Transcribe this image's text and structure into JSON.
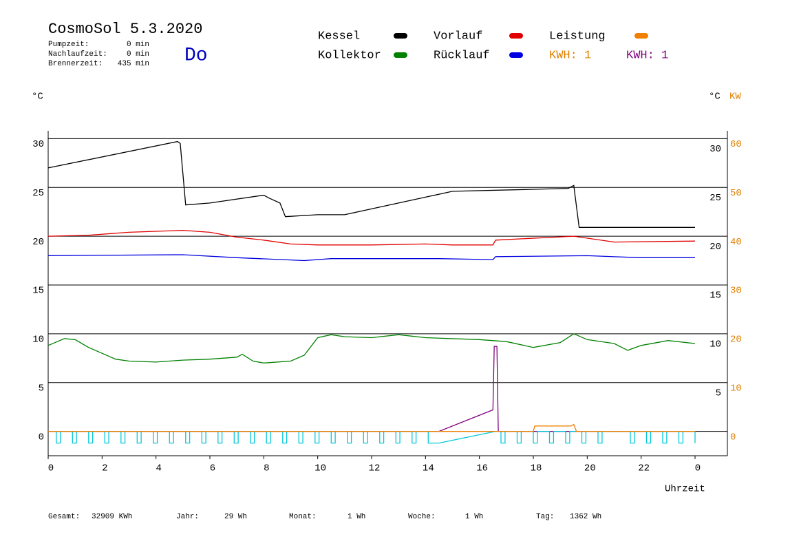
{
  "header": {
    "title": "CosmoSol 5.3.2020",
    "day": "Do",
    "info": [
      {
        "label": "Pumpzeit:",
        "value": "0 min"
      },
      {
        "label": "Nachlaufzeit:",
        "value": "0 min"
      },
      {
        "label": "Brennerzeit:",
        "value": "435 min"
      }
    ]
  },
  "footer": [
    {
      "label": "Gesamt:",
      "value": "32909 KWh"
    },
    {
      "label": "Jahr:",
      "value": "29 Wh"
    },
    {
      "label": "Monat:",
      "value": "1 Wh"
    },
    {
      "label": "Woche:",
      "value": "1 Wh"
    },
    {
      "label": "Tag:",
      "value": "1362 Wh"
    }
  ],
  "chart_data": {
    "type": "line",
    "xlabel": "Uhrzeit",
    "ylabel": "°C",
    "y2label_black": "°C",
    "y2label": "KW",
    "kwh_labels": [
      {
        "text": "KWH: 1",
        "color": "#e08000"
      },
      {
        "text": "KWH: 1",
        "color": "#800080"
      }
    ],
    "xlim": [
      0,
      25.2
    ],
    "xticks": [
      0,
      2,
      4,
      6,
      8,
      10,
      12,
      14,
      16,
      18,
      20,
      22,
      {
        "value": 24,
        "label": "0"
      }
    ],
    "ylim": [
      -2.5,
      30.8
    ],
    "yticks": [
      0,
      5,
      10,
      15,
      20,
      25,
      30
    ],
    "yticks_right": [
      5,
      10,
      15,
      20,
      25,
      30
    ],
    "y2lim": [
      -5,
      61.6
    ],
    "y2ticks": [
      0,
      10,
      20,
      30,
      40,
      50,
      60
    ],
    "grid": true,
    "series": [
      {
        "name": "Kessel",
        "color": "#000000",
        "x": [
          0,
          4.8,
          4.9,
          5.1,
          6,
          8,
          8.2,
          8.6,
          8.8,
          10,
          11,
          12,
          14,
          15,
          18,
          19.3,
          19.5,
          19.7,
          24
        ],
        "values": [
          27.0,
          29.7,
          29.5,
          23.2,
          23.4,
          24.2,
          23.9,
          23.4,
          22.0,
          22.2,
          22.2,
          22.8,
          24.0,
          24.6,
          24.8,
          24.9,
          25.2,
          20.9,
          20.9
        ]
      },
      {
        "name": "Kollektor",
        "color": "#008000",
        "x": [
          0,
          0.6,
          1,
          1.5,
          2,
          2.5,
          3,
          4,
          5,
          6,
          7,
          7.2,
          7.6,
          8,
          9,
          9.5,
          10,
          10.5,
          11,
          12,
          13,
          14,
          16,
          17,
          18,
          19,
          19.5,
          20,
          21,
          21.5,
          22,
          23,
          24
        ],
        "values": [
          8.8,
          9.5,
          9.4,
          8.6,
          8.0,
          7.4,
          7.2,
          7.1,
          7.3,
          7.4,
          7.6,
          7.9,
          7.2,
          7.0,
          7.2,
          7.8,
          9.6,
          9.9,
          9.7,
          9.6,
          9.9,
          9.6,
          9.4,
          9.2,
          8.6,
          9.1,
          10.0,
          9.4,
          9.0,
          8.3,
          8.8,
          9.3,
          9.0
        ]
      },
      {
        "name": "Vorlauf",
        "color": "#e00000",
        "x": [
          0,
          1.5,
          3,
          5,
          6,
          7,
          8,
          9,
          10,
          12,
          14,
          15,
          16.5,
          16.6,
          19.5,
          21,
          24
        ],
        "values": [
          20.0,
          20.1,
          20.4,
          20.6,
          20.4,
          19.9,
          19.6,
          19.2,
          19.1,
          19.1,
          19.2,
          19.1,
          19.1,
          19.6,
          20.0,
          19.4,
          19.5
        ]
      },
      {
        "name": "Rücklauf",
        "color": "#0000e0",
        "x": [
          0,
          5,
          7,
          9.5,
          10.5,
          14.5,
          16.5,
          16.6,
          20,
          22,
          24
        ],
        "values": [
          18.0,
          18.1,
          17.8,
          17.5,
          17.7,
          17.7,
          17.6,
          17.9,
          18.0,
          17.8,
          17.8
        ]
      },
      {
        "name": "Leistung",
        "color": "#f08000",
        "axis": "y2",
        "x": [
          0,
          16.6,
          18.0,
          18.05,
          19.4,
          19.5,
          19.6,
          24
        ],
        "values": [
          0,
          0,
          0,
          1.1,
          1.1,
          1.4,
          0,
          0
        ]
      },
      {
        "color": "#00c8d8",
        "x": [
          0,
          0.3,
          0.3,
          0.45,
          0.45,
          0.9,
          0.9,
          1.05,
          1.05,
          1.5,
          1.5,
          1.65,
          1.65,
          2.1,
          2.1,
          2.25,
          2.25,
          2.7,
          2.7,
          2.85,
          2.85,
          3.3,
          3.3,
          3.45,
          3.45,
          3.9,
          3.9,
          4.05,
          4.05,
          4.5,
          4.5,
          4.65,
          4.65,
          5.1,
          5.1,
          5.25,
          5.25,
          5.7,
          5.7,
          5.85,
          5.85,
          6.3,
          6.3,
          6.45,
          6.45,
          6.9,
          6.9,
          7.05,
          7.05,
          7.5,
          7.5,
          7.65,
          7.65,
          8.1,
          8.1,
          8.25,
          8.25,
          8.7,
          8.7,
          8.85,
          8.85,
          9.3,
          9.3,
          9.45,
          9.45,
          9.9,
          9.9,
          10.05,
          10.05,
          10.5,
          10.5,
          10.65,
          10.65,
          11.1,
          11.1,
          11.25,
          11.25,
          11.7,
          11.7,
          11.85,
          11.85,
          12.3,
          12.3,
          12.45,
          12.45,
          12.9,
          12.9,
          13.05,
          13.05,
          13.5,
          13.5,
          13.65,
          13.65,
          14.1,
          14.1,
          14.5,
          16.6,
          16.8,
          16.8,
          16.95,
          16.95,
          17.4,
          17.4,
          17.55,
          17.55,
          18.0,
          18.0,
          18.15,
          18.15,
          18.6,
          18.6,
          18.75,
          18.75,
          19.2,
          19.2,
          19.35,
          19.35,
          19.8,
          19.8,
          19.95,
          19.95,
          20.4,
          20.4,
          20.55,
          20.55,
          21.6,
          21.6,
          21.75,
          21.75,
          22.2,
          22.2,
          22.35,
          22.35,
          22.8,
          22.8,
          22.95,
          22.95,
          23.4,
          23.4,
          23.55,
          23.55,
          24,
          24
        ],
        "values": [
          0,
          0,
          -1.2,
          -1.2,
          0,
          0,
          -1.2,
          -1.2,
          0,
          0,
          -1.2,
          -1.2,
          0,
          0,
          -1.2,
          -1.2,
          0,
          0,
          -1.2,
          -1.2,
          0,
          0,
          -1.2,
          -1.2,
          0,
          0,
          -1.2,
          -1.2,
          0,
          0,
          -1.2,
          -1.2,
          0,
          0,
          -1.2,
          -1.2,
          0,
          0,
          -1.2,
          -1.2,
          0,
          0,
          -1.2,
          -1.2,
          0,
          0,
          -1.2,
          -1.2,
          0,
          0,
          -1.2,
          -1.2,
          0,
          0,
          -1.2,
          -1.2,
          0,
          0,
          -1.2,
          -1.2,
          0,
          0,
          -1.2,
          -1.2,
          0,
          0,
          -1.2,
          -1.2,
          0,
          0,
          -1.2,
          -1.2,
          0,
          0,
          -1.2,
          -1.2,
          0,
          0,
          -1.2,
          -1.2,
          0,
          0,
          -1.2,
          -1.2,
          0,
          0,
          -1.2,
          -1.2,
          0,
          0,
          -1.2,
          -1.2,
          0,
          0,
          -1.2,
          -1.2,
          0,
          0,
          -1.2,
          -1.2,
          0,
          0,
          -1.2,
          -1.2,
          0,
          0,
          -1.2,
          -1.2,
          0,
          0,
          -1.2,
          -1.2,
          0,
          0,
          -1.2,
          -1.2,
          0,
          0,
          -1.2,
          -1.2,
          0,
          0,
          -1.2,
          -1.2,
          0,
          0,
          -1.2,
          -1.2,
          0,
          0,
          -1.2,
          -1.2,
          0,
          0,
          -1.2,
          -1.2,
          0,
          0,
          -1.2,
          -1.2,
          0,
          0,
          -1.2
        ]
      },
      {
        "color": "#800080",
        "x": [
          0,
          14.5,
          16.5,
          16.55,
          16.65,
          16.7,
          24
        ],
        "values": [
          0,
          0,
          2.2,
          8.7,
          8.7,
          0,
          0
        ]
      }
    ]
  }
}
